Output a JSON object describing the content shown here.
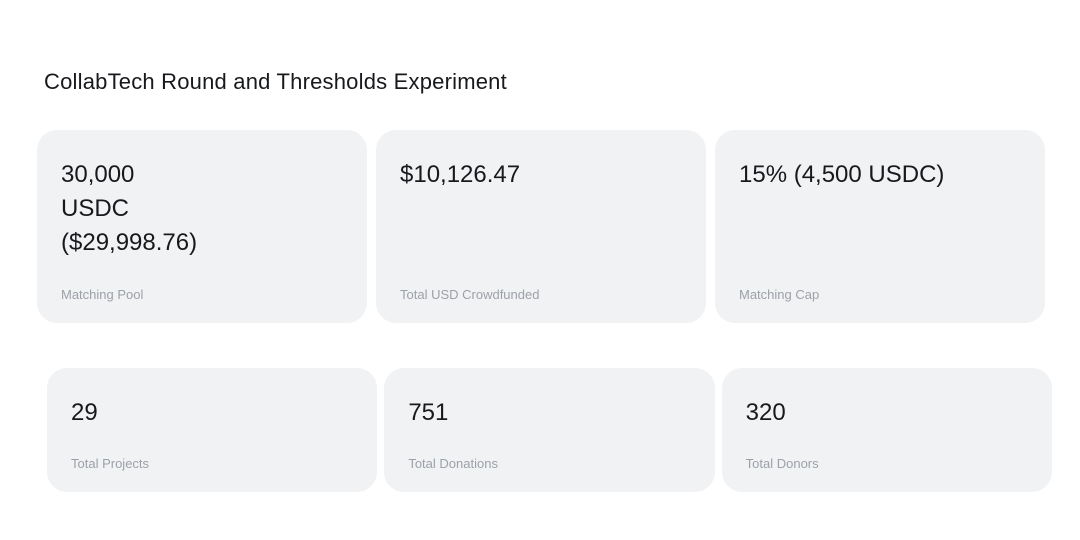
{
  "page": {
    "title": "CollabTech Round and Thresholds Experiment"
  },
  "colors": {
    "page_bg": "#ffffff",
    "card_bg": "#f1f2f4",
    "value_text": "#17191c",
    "label_text": "#9ca1a8"
  },
  "stats_row_primary": [
    {
      "value": "30,000\nUSDC\n($29,998.76)",
      "label": "Matching Pool"
    },
    {
      "value": "$10,126.47",
      "label": "Total USD Crowdfunded"
    },
    {
      "value": "15% (4,500 USDC)",
      "label": "Matching Cap"
    }
  ],
  "stats_row_secondary": [
    {
      "value": "29",
      "label": "Total Projects"
    },
    {
      "value": "751",
      "label": "Total Donations"
    },
    {
      "value": "320",
      "label": "Total Donors"
    }
  ]
}
